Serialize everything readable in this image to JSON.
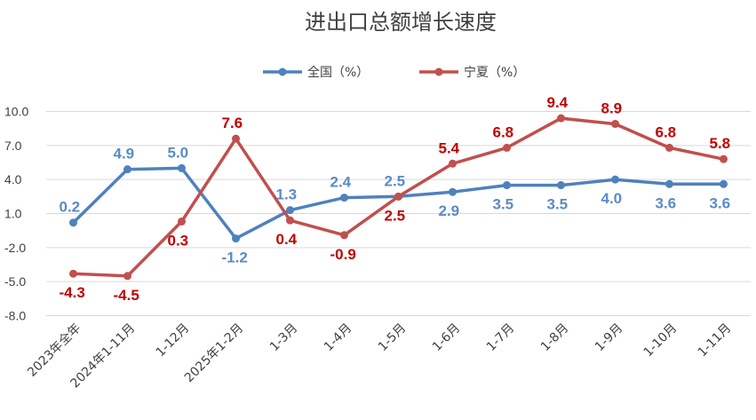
{
  "chart_data": {
    "type": "line",
    "title": "进出口总额增长速度",
    "categories": [
      "2023年全年",
      "2024年1-11月",
      "1-12月",
      "2025年1-2月",
      "1-3月",
      "1-4月",
      "1-5月",
      "1-6月",
      "1-7月",
      "1-8月",
      "1-9月",
      "1-10月",
      "1-11月"
    ],
    "series": [
      {
        "name": "全国（%）",
        "color": "#4F81BD",
        "label_color": "#5B8BC5",
        "values": [
          0.2,
          4.9,
          5.0,
          -1.2,
          1.3,
          2.4,
          2.5,
          2.9,
          3.5,
          3.5,
          4.0,
          3.6,
          3.6
        ],
        "labels": [
          "0.2",
          "4.9",
          "5.0",
          "-1.2",
          "1.3",
          "2.4",
          "2.5",
          "2.9",
          "3.5",
          "3.5",
          "4.0",
          "3.6",
          "3.6"
        ]
      },
      {
        "name": "宁夏（%）",
        "color": "#C0504D",
        "label_color": "#C00000",
        "values": [
          -4.3,
          -4.5,
          0.3,
          7.6,
          0.4,
          -0.9,
          2.5,
          5.4,
          6.8,
          9.4,
          8.9,
          6.8,
          5.8
        ],
        "labels": [
          "-4.3",
          "-4.5",
          "0.3",
          "7.6",
          "0.4",
          "-0.9",
          "2.5",
          "5.4",
          "6.8",
          "9.4",
          "8.9",
          "6.8",
          "5.8"
        ]
      }
    ],
    "ylim": [
      -8.0,
      10.0
    ],
    "yticks": [
      10.0,
      7.0,
      4.0,
      1.0,
      -2.0,
      -5.0,
      -8.0
    ],
    "ytick_labels": [
      "10.0",
      "7.0",
      "4.0",
      "1.0",
      "-2.0",
      "-5.0",
      "-8.0"
    ],
    "grid": true,
    "legend_position": "top-center"
  }
}
